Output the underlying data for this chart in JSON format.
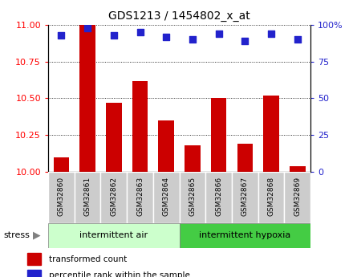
{
  "title": "GDS1213 / 1454802_x_at",
  "samples": [
    "GSM32860",
    "GSM32861",
    "GSM32862",
    "GSM32863",
    "GSM32864",
    "GSM32865",
    "GSM32866",
    "GSM32867",
    "GSM32868",
    "GSM32869"
  ],
  "red_values": [
    10.1,
    11.0,
    10.47,
    10.62,
    10.35,
    10.18,
    10.5,
    10.19,
    10.52,
    10.04
  ],
  "blue_values": [
    93,
    98,
    93,
    95,
    92,
    90,
    94,
    89,
    94,
    90
  ],
  "ylim_left": [
    10,
    11
  ],
  "ylim_right": [
    0,
    100
  ],
  "yticks_left": [
    10,
    10.25,
    10.5,
    10.75,
    11
  ],
  "yticks_right": [
    0,
    25,
    50,
    75,
    100
  ],
  "group1_label": "intermittent air",
  "group2_label": "intermittent hypoxia",
  "stress_label": "stress",
  "legend_red": "transformed count",
  "legend_blue": "percentile rank within the sample",
  "bar_color": "#cc0000",
  "dot_color": "#2222cc",
  "group1_color": "#ccffcc",
  "group2_color": "#44cc44",
  "tick_label_bg": "#cccccc",
  "bar_width": 0.6,
  "blue_marker_size": 28
}
